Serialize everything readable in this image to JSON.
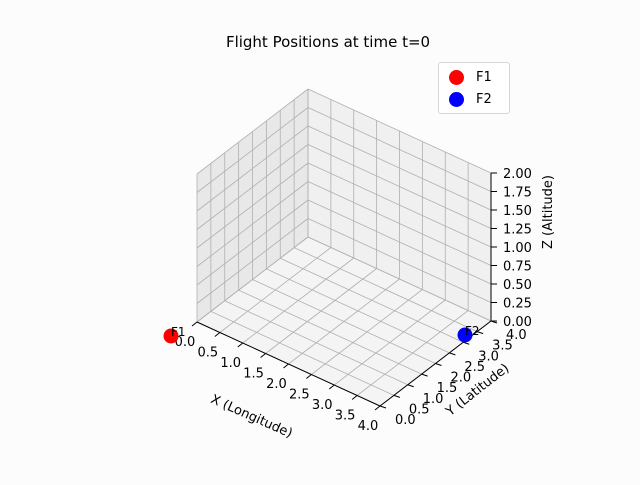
{
  "chart_data": {
    "type": "scatter",
    "title": "Flight Positions at time t=0",
    "xlabel": "X (Longitude)",
    "ylabel": "Y (Latitude)",
    "zlabel": "Z (Altitude)",
    "xlim": [
      0,
      4
    ],
    "ylim": [
      0,
      4
    ],
    "zlim": [
      0,
      2
    ],
    "x_ticks": [
      "0.0",
      "0.5",
      "1.0",
      "1.5",
      "2.0",
      "2.5",
      "3.0",
      "3.5",
      "4.0"
    ],
    "y_ticks": [
      "0.0",
      "0.5",
      "1.0",
      "1.5",
      "2.0",
      "2.5",
      "3.0",
      "3.5",
      "4.0"
    ],
    "z_ticks": [
      "0.00",
      "0.25",
      "0.50",
      "0.75",
      "1.00",
      "1.25",
      "1.50",
      "1.75",
      "2.00"
    ],
    "grid": true,
    "legend_position": "top-right",
    "series": [
      {
        "name": "F1",
        "color": "#ff0000",
        "points": [
          {
            "x": 0,
            "y": 0,
            "z": 0,
            "label": "F1"
          }
        ]
      },
      {
        "name": "F2",
        "color": "#0000ff",
        "points": [
          {
            "x": 4,
            "y": 4,
            "z": 0,
            "label": "F2"
          }
        ]
      }
    ]
  }
}
